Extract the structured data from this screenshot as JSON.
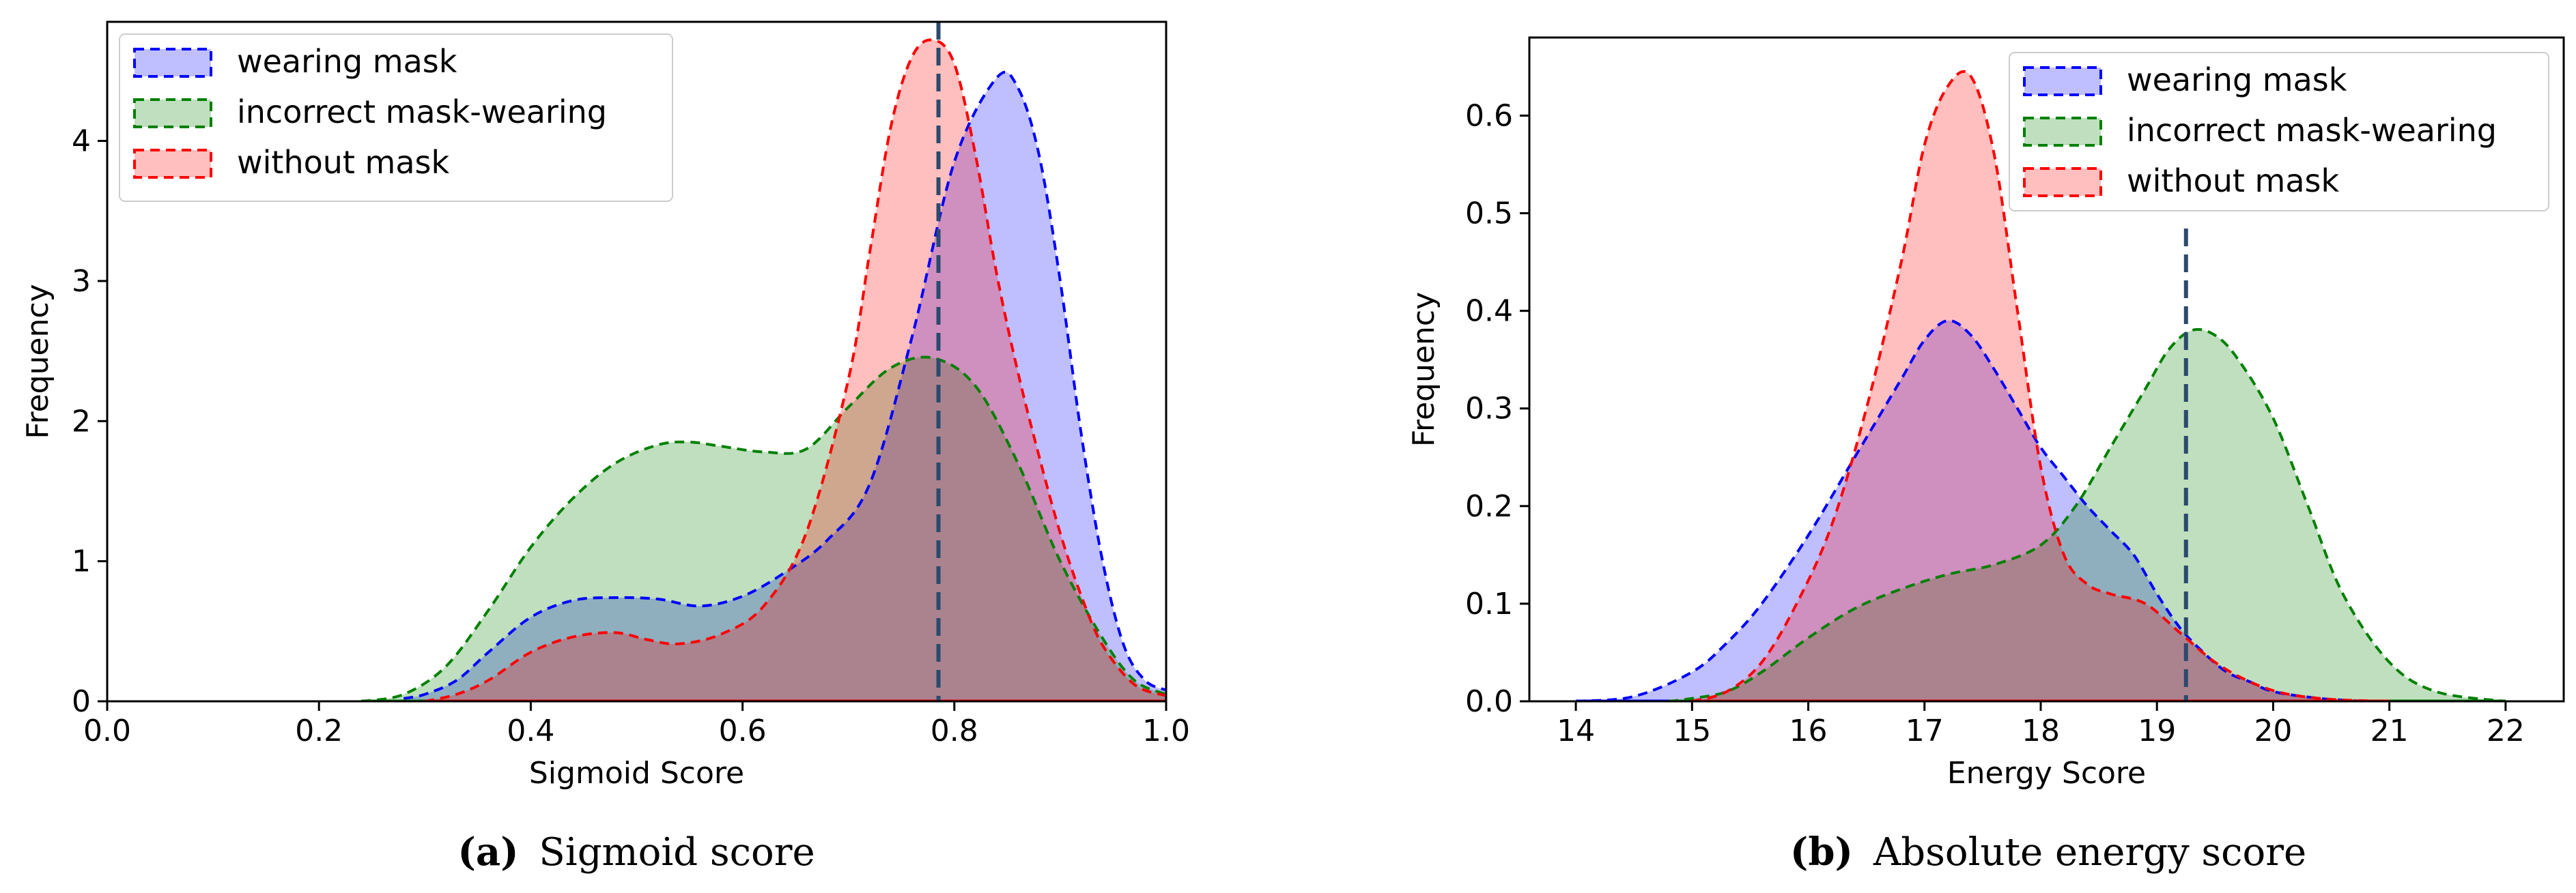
{
  "chart_data": [
    {
      "type": "area",
      "id": "a",
      "caption_label": "(a)",
      "caption_text": "Sigmoid score",
      "xlabel": "Sigmoid Score",
      "ylabel": "Frequency",
      "xlim": [
        0.0,
        1.0
      ],
      "ylim": [
        0,
        4.85
      ],
      "xticks": [
        0.0,
        0.2,
        0.4,
        0.6,
        0.8,
        1.0
      ],
      "xtick_labels": [
        "0.0",
        "0.2",
        "0.4",
        "0.6",
        "0.8",
        "1.0"
      ],
      "yticks": [
        0,
        1,
        2,
        3,
        4
      ],
      "ytick_labels": [
        "0",
        "1",
        "2",
        "3",
        "4"
      ],
      "threshold_x": 0.785,
      "legend_position": "top-left",
      "grid": false,
      "series": [
        {
          "name": "wearing mask",
          "color": "#0000ff",
          "fill": "#c3c3f7",
          "x": [
            0.28,
            0.3,
            0.33,
            0.36,
            0.4,
            0.44,
            0.48,
            0.52,
            0.56,
            0.6,
            0.64,
            0.68,
            0.72,
            0.76,
            0.8,
            0.84,
            0.86,
            0.88,
            0.9,
            0.92,
            0.94,
            0.96,
            0.98,
            1.0
          ],
          "y": [
            0.02,
            0.05,
            0.15,
            0.35,
            0.6,
            0.72,
            0.74,
            0.73,
            0.68,
            0.75,
            0.92,
            1.15,
            1.55,
            2.6,
            3.85,
            4.45,
            4.38,
            3.9,
            3.0,
            1.9,
            1.0,
            0.4,
            0.15,
            0.08
          ]
        },
        {
          "name": "incorrect mask-wearing",
          "color": "#008000",
          "fill": "#bcdfbc",
          "x": [
            0.24,
            0.28,
            0.32,
            0.36,
            0.4,
            0.44,
            0.48,
            0.52,
            0.55,
            0.58,
            0.62,
            0.66,
            0.7,
            0.74,
            0.78,
            0.82,
            0.86,
            0.9,
            0.94,
            0.97,
            1.0
          ],
          "y": [
            0.0,
            0.05,
            0.25,
            0.65,
            1.1,
            1.45,
            1.7,
            1.83,
            1.85,
            1.82,
            1.78,
            1.8,
            2.1,
            2.38,
            2.45,
            2.25,
            1.7,
            1.0,
            0.45,
            0.15,
            0.05
          ]
        },
        {
          "name": "without mask",
          "color": "#ff0000",
          "fill": "#f9b4b4",
          "x": [
            0.3,
            0.33,
            0.36,
            0.4,
            0.44,
            0.48,
            0.51,
            0.54,
            0.58,
            0.62,
            0.66,
            0.7,
            0.72,
            0.74,
            0.76,
            0.78,
            0.8,
            0.82,
            0.84,
            0.86,
            0.88,
            0.9,
            0.92,
            0.94,
            0.97,
            1.0
          ],
          "y": [
            0.0,
            0.05,
            0.15,
            0.35,
            0.46,
            0.49,
            0.44,
            0.41,
            0.48,
            0.68,
            1.2,
            2.3,
            3.2,
            4.1,
            4.6,
            4.72,
            4.55,
            3.9,
            3.05,
            2.35,
            1.75,
            1.2,
            0.75,
            0.4,
            0.12,
            0.04
          ]
        }
      ]
    },
    {
      "type": "area",
      "id": "b",
      "caption_label": "(b)",
      "caption_text": "Absolute energy score",
      "xlabel": "Energy Score",
      "ylabel": "Frequency",
      "xlim": [
        13.6,
        22.5
      ],
      "ylim": [
        0,
        0.68
      ],
      "xticks": [
        14,
        15,
        16,
        17,
        18,
        19,
        20,
        21,
        22
      ],
      "xtick_labels": [
        "14",
        "15",
        "16",
        "17",
        "18",
        "19",
        "20",
        "21",
        "22"
      ],
      "yticks": [
        0.0,
        0.1,
        0.2,
        0.3,
        0.4,
        0.5,
        0.6
      ],
      "ytick_labels": [
        "0.0",
        "0.1",
        "0.2",
        "0.3",
        "0.4",
        "0.5",
        "0.6"
      ],
      "threshold_x": 19.25,
      "legend_position": "top-right",
      "grid": false,
      "series": [
        {
          "name": "wearing mask",
          "color": "#0000ff",
          "fill": "#c3c3f7",
          "x": [
            14.0,
            14.5,
            15.0,
            15.3,
            15.6,
            16.0,
            16.4,
            16.8,
            17.0,
            17.2,
            17.4,
            17.6,
            17.8,
            18.0,
            18.2,
            18.4,
            18.6,
            18.8,
            19.0,
            19.2,
            19.4,
            19.6,
            19.8,
            20.0,
            20.4,
            20.8
          ],
          "y": [
            0.0,
            0.005,
            0.03,
            0.06,
            0.1,
            0.17,
            0.25,
            0.33,
            0.37,
            0.39,
            0.375,
            0.34,
            0.3,
            0.26,
            0.23,
            0.2,
            0.175,
            0.15,
            0.11,
            0.075,
            0.05,
            0.03,
            0.02,
            0.01,
            0.003,
            0.0
          ]
        },
        {
          "name": "incorrect mask-wearing",
          "color": "#008000",
          "fill": "#bcdfbc",
          "x": [
            14.8,
            15.0,
            15.3,
            15.6,
            16.0,
            16.4,
            16.8,
            17.2,
            17.6,
            18.0,
            18.3,
            18.6,
            18.9,
            19.1,
            19.3,
            19.5,
            19.7,
            20.0,
            20.3,
            20.6,
            21.0,
            21.4,
            22.0
          ],
          "y": [
            0.0,
            0.003,
            0.01,
            0.03,
            0.065,
            0.095,
            0.115,
            0.13,
            0.14,
            0.16,
            0.2,
            0.26,
            0.32,
            0.36,
            0.38,
            0.375,
            0.35,
            0.29,
            0.2,
            0.11,
            0.04,
            0.01,
            0.0
          ]
        },
        {
          "name": "without mask",
          "color": "#ff0000",
          "fill": "#f9b4b4",
          "x": [
            15.0,
            15.3,
            15.6,
            15.9,
            16.2,
            16.5,
            16.8,
            17.0,
            17.2,
            17.4,
            17.6,
            17.8,
            18.0,
            18.2,
            18.4,
            18.6,
            18.9,
            19.2,
            19.5,
            19.8,
            20.1,
            20.5,
            21.0
          ],
          "y": [
            0.0,
            0.01,
            0.04,
            0.1,
            0.18,
            0.3,
            0.45,
            0.57,
            0.63,
            0.64,
            0.56,
            0.4,
            0.24,
            0.15,
            0.12,
            0.11,
            0.1,
            0.07,
            0.04,
            0.02,
            0.008,
            0.002,
            0.0
          ]
        }
      ]
    }
  ]
}
